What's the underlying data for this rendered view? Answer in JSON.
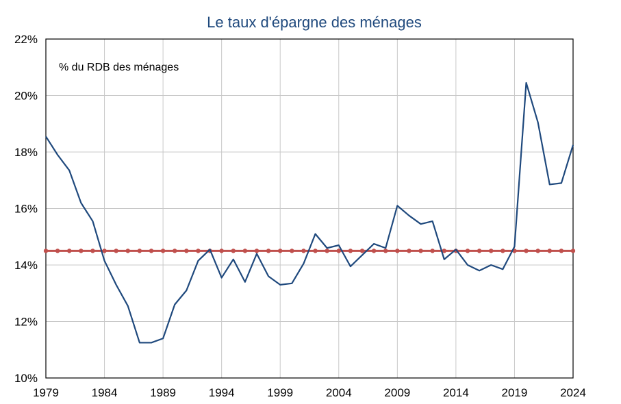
{
  "chart_data": {
    "type": "line",
    "title": "Le taux d'épargne des ménages",
    "annotation": "% du RDB des ménages",
    "xlabel": "",
    "ylabel": "",
    "xlim": [
      1979,
      2024
    ],
    "ylim": [
      10,
      22
    ],
    "x_ticks": [
      1979,
      1984,
      1989,
      1994,
      1999,
      2004,
      2009,
      2014,
      2019,
      2024
    ],
    "y_ticks": [
      10,
      12,
      14,
      16,
      18,
      20,
      22
    ],
    "y_tick_labels": [
      "10%",
      "12%",
      "14%",
      "16%",
      "18%",
      "20%",
      "22%"
    ],
    "grid": true,
    "x": [
      1979,
      1980,
      1981,
      1982,
      1983,
      1984,
      1985,
      1986,
      1987,
      1988,
      1989,
      1990,
      1991,
      1992,
      1993,
      1994,
      1995,
      1996,
      1997,
      1998,
      1999,
      2000,
      2001,
      2002,
      2003,
      2004,
      2005,
      2006,
      2007,
      2008,
      2009,
      2010,
      2011,
      2012,
      2013,
      2014,
      2015,
      2016,
      2017,
      2018,
      2019,
      2020,
      2021,
      2022,
      2023,
      2024
    ],
    "series": [
      {
        "color": "#1f497d",
        "marker": false,
        "values": [
          18.55,
          17.9,
          17.35,
          16.2,
          15.55,
          14.15,
          13.3,
          12.55,
          11.25,
          11.25,
          11.4,
          12.6,
          13.1,
          14.15,
          14.55,
          13.55,
          14.2,
          13.4,
          14.4,
          13.6,
          13.3,
          13.35,
          14.05,
          15.1,
          14.6,
          14.7,
          13.95,
          14.35,
          14.75,
          14.6,
          16.1,
          15.75,
          15.45,
          15.55,
          14.2,
          14.55,
          14.0,
          13.8,
          14.0,
          13.85,
          14.65,
          20.45,
          19.05,
          16.85,
          16.9,
          18.25
        ]
      },
      {
        "color": "#c0504d",
        "marker": true,
        "values": [
          14.5,
          14.5,
          14.5,
          14.5,
          14.5,
          14.5,
          14.5,
          14.5,
          14.5,
          14.5,
          14.5,
          14.5,
          14.5,
          14.5,
          14.5,
          14.5,
          14.5,
          14.5,
          14.5,
          14.5,
          14.5,
          14.5,
          14.5,
          14.5,
          14.5,
          14.5,
          14.5,
          14.5,
          14.5,
          14.5,
          14.5,
          14.5,
          14.5,
          14.5,
          14.5,
          14.5,
          14.5,
          14.5,
          14.5,
          14.5,
          14.5,
          14.5,
          14.5,
          14.5,
          14.5,
          14.5
        ]
      }
    ]
  }
}
